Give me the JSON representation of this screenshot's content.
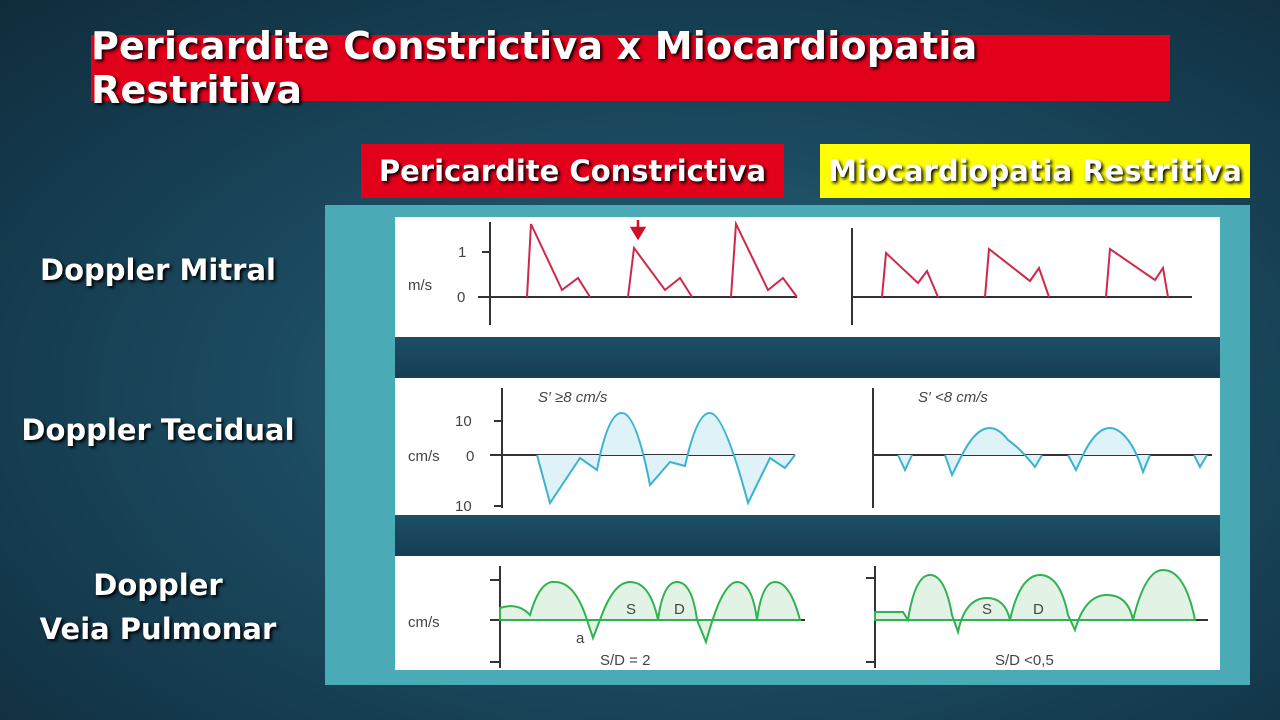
{
  "title": "Pericardite Constrictiva x Miocardiopatia Restritiva",
  "columns": [
    "Pericardite Constrictiva",
    "Miocardiopatia Restritiva"
  ],
  "rows": {
    "mitral": "Doppler Mitral",
    "tecidual": "Doppler Tecidual",
    "veia_line1": "Doppler",
    "veia_line2": "Veia Pulmonar"
  },
  "mitral_panel": {
    "unit": "m/s",
    "tick_1": "1",
    "tick_0": "0"
  },
  "tecidual_panel": {
    "unit": "cm/s",
    "tick_top": "10",
    "tick_0": "0",
    "tick_bottom": "10",
    "left_label": "S′ ≥8 cm/s",
    "right_label": "S′ <8 cm/s"
  },
  "veia_panel": {
    "unit": "cm/s",
    "s": "S",
    "d": "D",
    "a": "a",
    "left_ratio": "S/D = 2",
    "right_ratio": "S/D <0,5"
  },
  "colors": {
    "title_bg": "#e3001b",
    "yellow": "#ffff00",
    "mitral_wave": "#d0284a",
    "tissue_wave": "#3ab3d0",
    "vein_wave": "#2fb350"
  }
}
